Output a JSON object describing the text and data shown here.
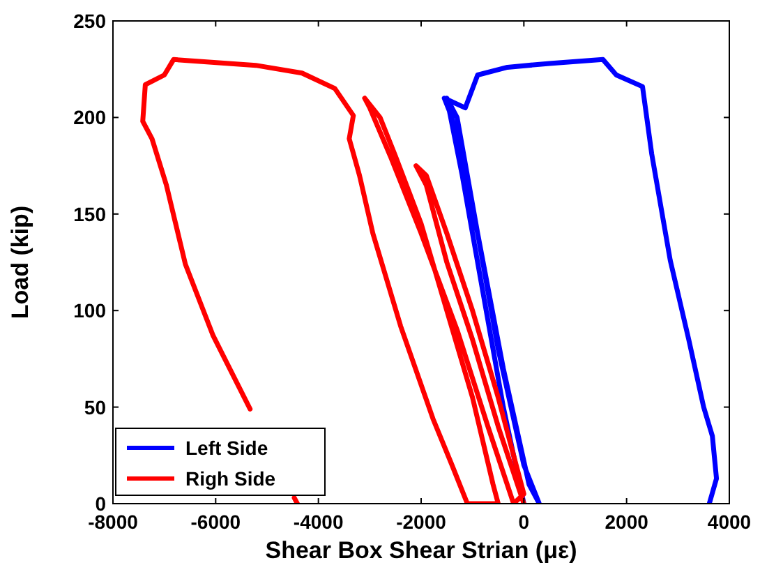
{
  "chart_data": {
    "type": "line",
    "xlabel": "Shear Box Shear Strian (με)",
    "ylabel": "Load (kip)",
    "xlim": [
      -8000,
      4000
    ],
    "ylim": [
      0,
      250
    ],
    "xticks": [
      -8000,
      -6000,
      -4000,
      -2000,
      0,
      2000,
      4000
    ],
    "yticks": [
      0,
      50,
      100,
      150,
      200,
      250
    ],
    "grid": false,
    "legend": "bottom left",
    "line_style": "solid",
    "series": [
      {
        "name": "Left Side",
        "color": "#0000ff",
        "x": [
          0,
          -400,
          -800,
          -1200,
          -1500,
          -1300,
          -900,
          -500,
          0,
          300,
          100,
          -400,
          -900,
          -1400,
          -1550,
          -1140,
          -900,
          -320,
          500,
          1540,
          1800,
          2310,
          2490,
          2850,
          3210,
          3500,
          3670,
          3750,
          3610
        ],
        "values": [
          0,
          50,
          110,
          170,
          210,
          200,
          140,
          80,
          20,
          0,
          10,
          70,
          140,
          200,
          210,
          205,
          222,
          226,
          228,
          230,
          222,
          216,
          181,
          126,
          85,
          50,
          35,
          13,
          0
        ]
      },
      {
        "name": "Righ Side",
        "color": "#ff0000",
        "x": [
          0,
          -500,
          -1000,
          -1500,
          -1900,
          -2100,
          -1900,
          -1500,
          -1000,
          -500,
          0,
          -200,
          -700,
          -1300,
          -2000,
          -2600,
          -3000,
          -3100,
          -2800,
          -2500,
          -2000,
          -1500,
          -1000,
          -600,
          -500,
          -1100,
          -1400,
          -1770,
          -2400,
          -2940,
          -3200,
          -3400,
          -3320,
          -3680,
          -4320,
          -5220,
          -6820,
          -7000,
          -7370,
          -7420,
          -7240,
          -6960,
          -6590,
          -6050,
          -5330,
          -4900,
          -4470,
          -4410
        ],
        "values": [
          0,
          40,
          85,
          125,
          165,
          175,
          170,
          140,
          100,
          55,
          5,
          0,
          40,
          90,
          140,
          180,
          205,
          210,
          200,
          180,
          145,
          100,
          55,
          10,
          0,
          0,
          20,
          44,
          92,
          140,
          170,
          189,
          201,
          215,
          223,
          227,
          230,
          222,
          217,
          198,
          189,
          165,
          124,
          87,
          49,
          null,
          3,
          0
        ]
      }
    ]
  }
}
